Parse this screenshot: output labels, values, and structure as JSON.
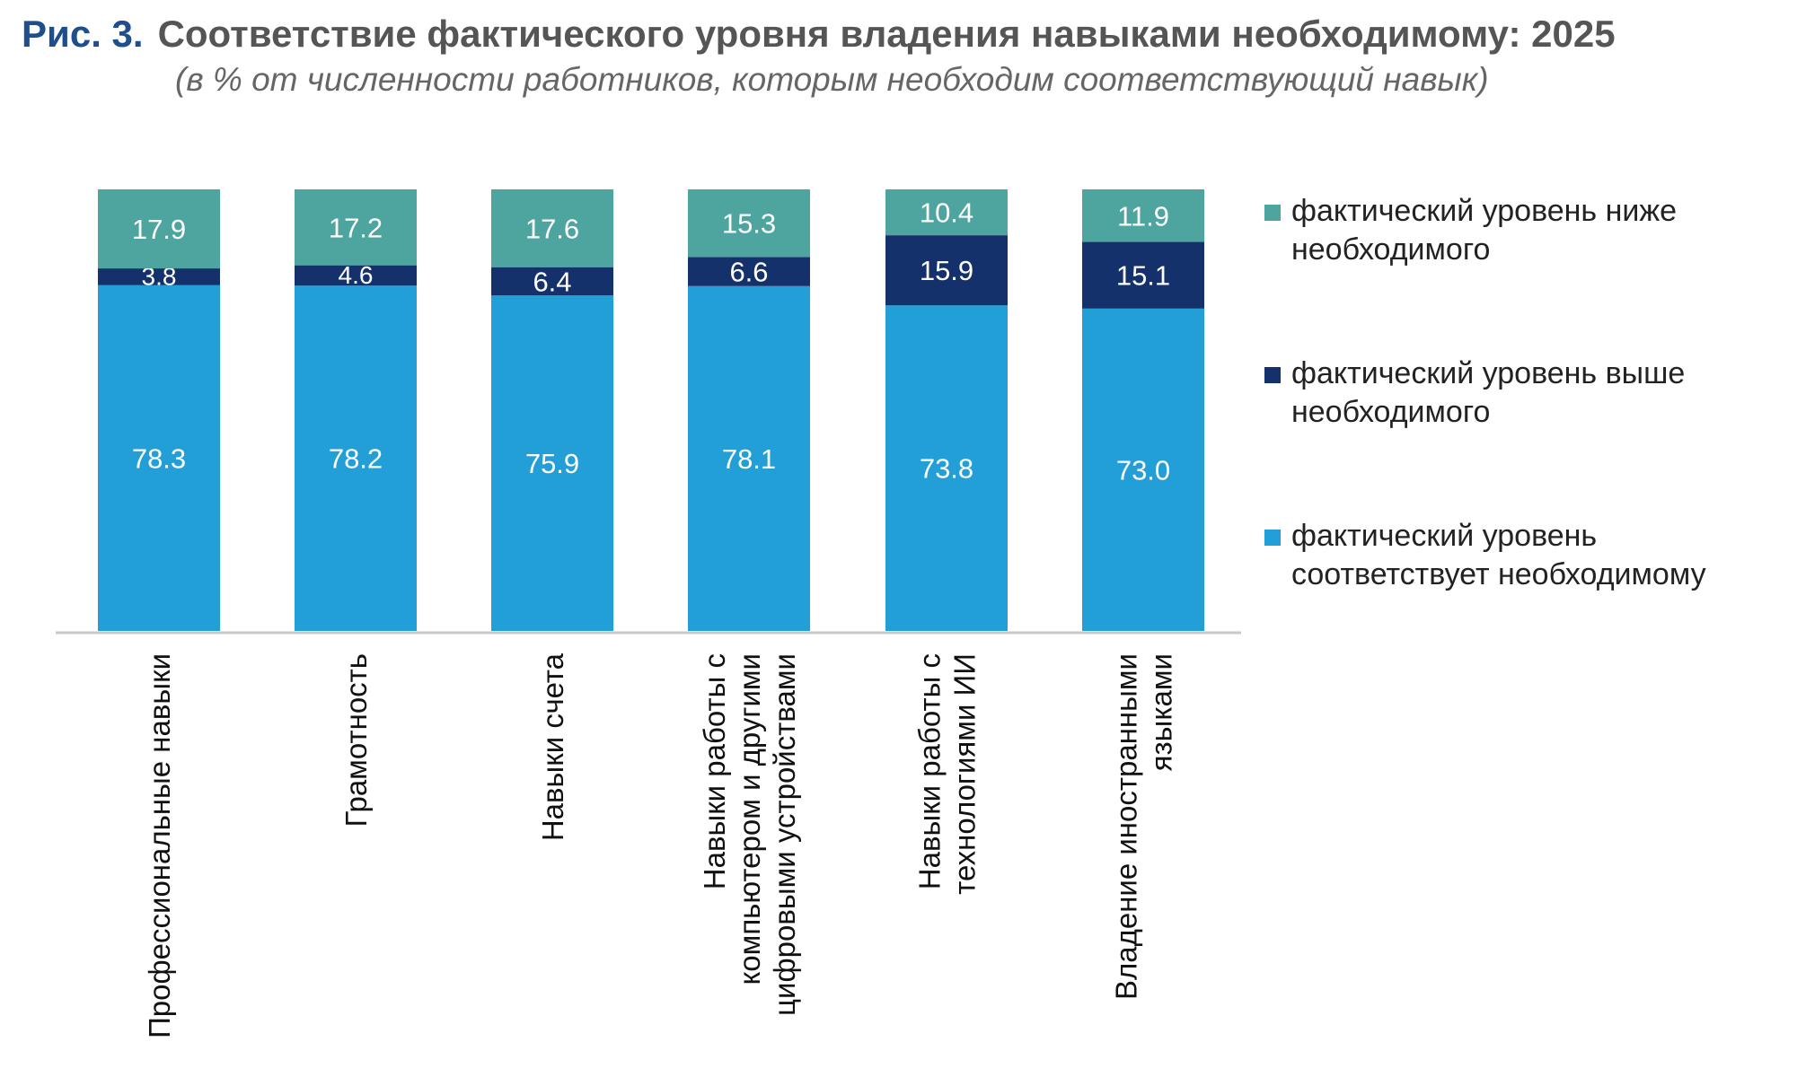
{
  "header": {
    "figure_label": "Рис. 3.",
    "title": "Соответствие фактического уровня владения навыками необходимому: 2025",
    "subtitle": "(в % от численности работников, которым необходим соответствующий навык)"
  },
  "chart_data": {
    "type": "bar",
    "stacked": true,
    "title": "Соответствие фактического уровня владения навыками необходимому: 2025",
    "subtitle": "(в % от численности работников, которым необходим соответствующий навык)",
    "categories": [
      "Профессиональные навыки",
      "Грамотность",
      "Навыки счета",
      "Навыки работы с компьютером и другими цифровыми устройствами",
      "Навыки работы с технологиями ИИ",
      "Владение иностранными языками"
    ],
    "category_lines": [
      [
        "Профессиональные навыки"
      ],
      [
        "Грамотность"
      ],
      [
        "Навыки счета"
      ],
      [
        "Навыки работы с",
        "компьютером и другими",
        "цифровыми устройствами"
      ],
      [
        "Навыки работы с",
        "технологиями ИИ"
      ],
      [
        "Владение иностранными",
        "языками"
      ]
    ],
    "series": [
      {
        "name": "фактический уровень соответствует необходимому",
        "color": "#239fd8",
        "values": [
          78.3,
          78.2,
          75.9,
          78.1,
          73.8,
          73.0
        ]
      },
      {
        "name": "фактический уровень выше необходимого",
        "color": "#15316b",
        "values": [
          3.8,
          4.6,
          6.4,
          6.6,
          15.9,
          15.1
        ]
      },
      {
        "name": "фактический уровень ниже необходимого",
        "color": "#4ea59f",
        "values": [
          17.9,
          17.2,
          17.6,
          15.3,
          10.4,
          11.9
        ]
      }
    ],
    "legend_order": [
      2,
      1,
      0
    ],
    "legend_labels": [
      [
        "фактический уровень ниже",
        "необходимого"
      ],
      [
        "фактический уровень выше",
        "необходимого"
      ],
      [
        "фактический уровень",
        "соответствует необходимому"
      ]
    ],
    "ylim": [
      0,
      100
    ],
    "grid": false,
    "legend_position": "right"
  }
}
